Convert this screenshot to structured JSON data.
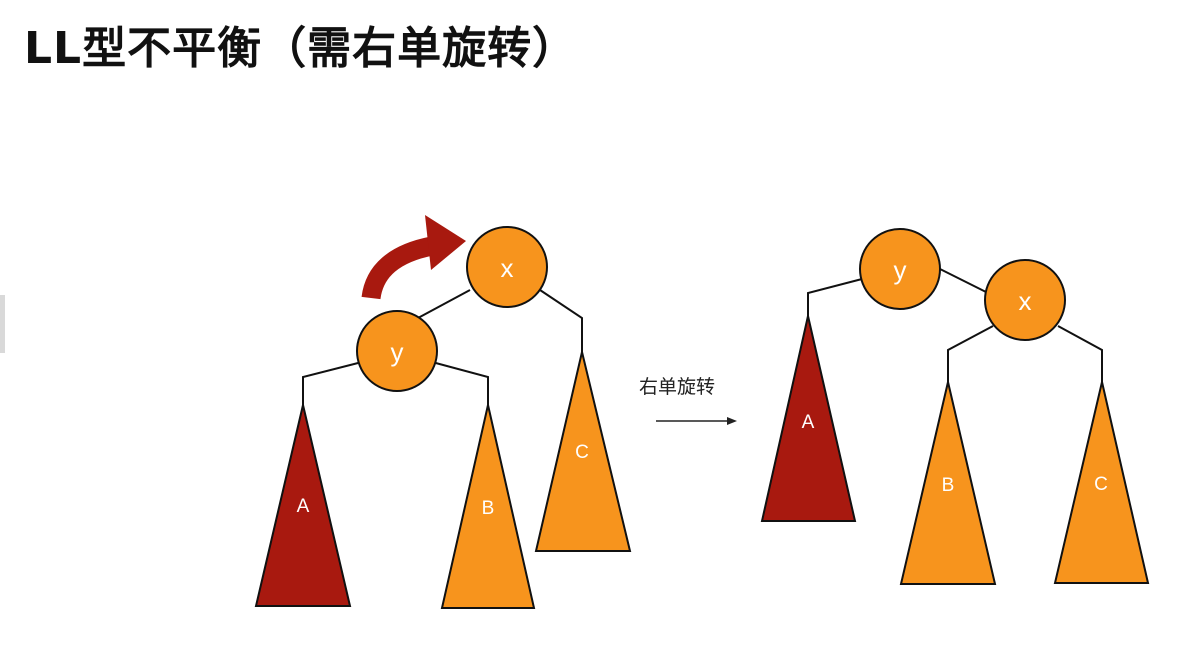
{
  "title": "LL型不平衡（需右单旋转）",
  "colors": {
    "node": "#f7941d",
    "subtree_dark": "#a8190f",
    "subtree_light": "#f7941d",
    "arrow": "#a8190f",
    "edge": "#111111"
  },
  "left_tree": {
    "nodes": {
      "x": "x",
      "y": "y"
    },
    "subtrees": {
      "a": "A",
      "b": "B",
      "c": "C"
    }
  },
  "operation": {
    "label": "右单旋转",
    "arrow_icon": "right-arrow-icon"
  },
  "right_tree": {
    "nodes": {
      "y": "y",
      "x": "x"
    },
    "subtrees": {
      "a": "A",
      "b": "B",
      "c": "C"
    }
  }
}
